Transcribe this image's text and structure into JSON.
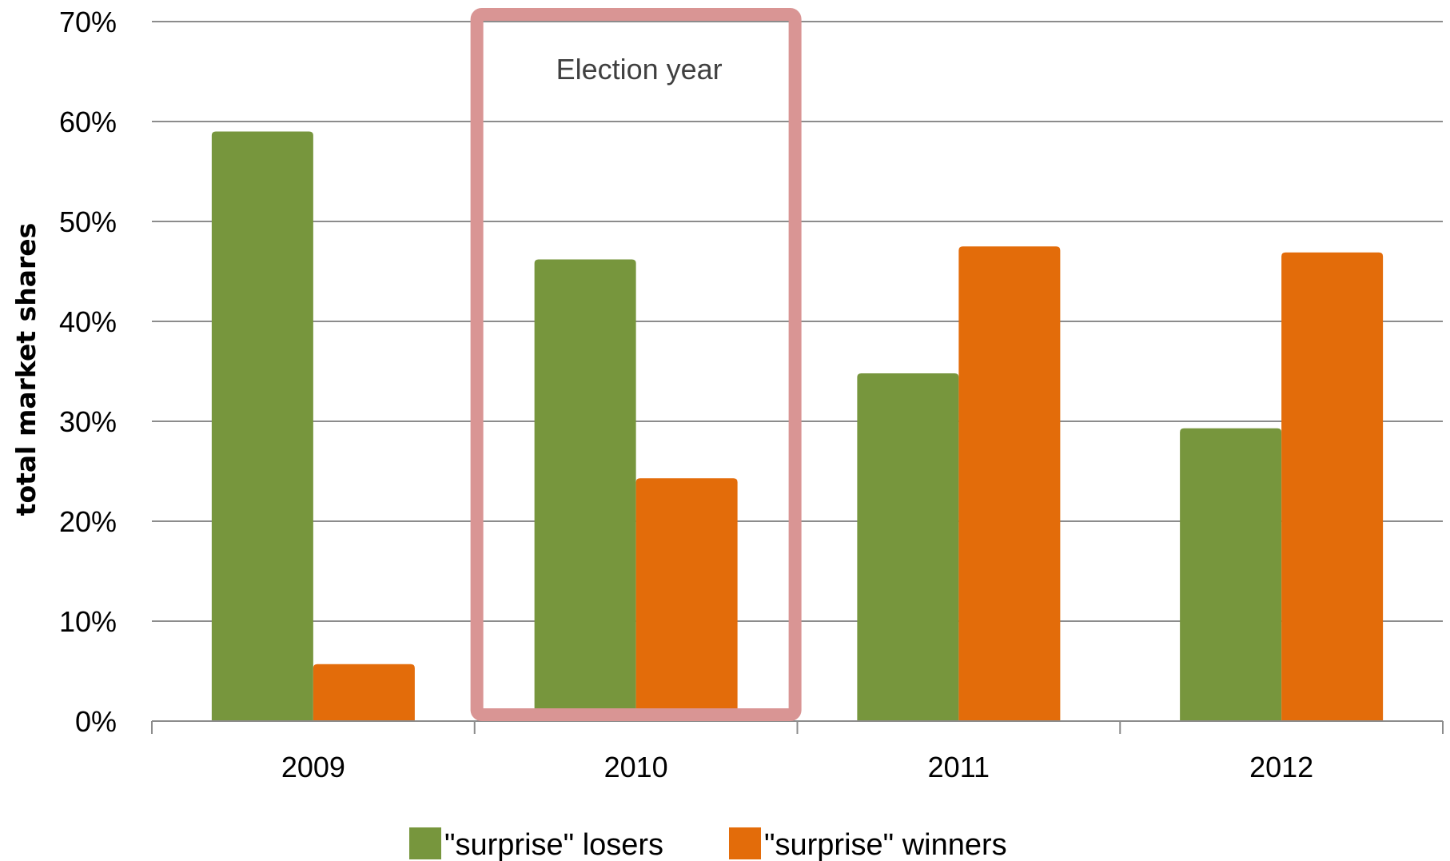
{
  "chart_data": {
    "type": "bar",
    "categories": [
      "2009",
      "2010",
      "2011",
      "2012"
    ],
    "series": [
      {
        "name": "\"surprise\" losers",
        "color": "#77963D",
        "values": [
          59,
          46.2,
          34.8,
          29.3
        ]
      },
      {
        "name": "\"surprise\" winners",
        "color": "#E36C0A",
        "values": [
          5.7,
          24.3,
          47.5,
          46.9
        ]
      }
    ],
    "title": "",
    "xlabel": "",
    "ylabel": "total market shares",
    "ylim": [
      0,
      70
    ],
    "yticks": [
      "0%",
      "10%",
      "20%",
      "30%",
      "40%",
      "50%",
      "60%",
      "70%"
    ],
    "grid": true,
    "legend": "bottom",
    "annotation": {
      "text": "Election year",
      "category": "2010",
      "color": "#D99594"
    }
  }
}
